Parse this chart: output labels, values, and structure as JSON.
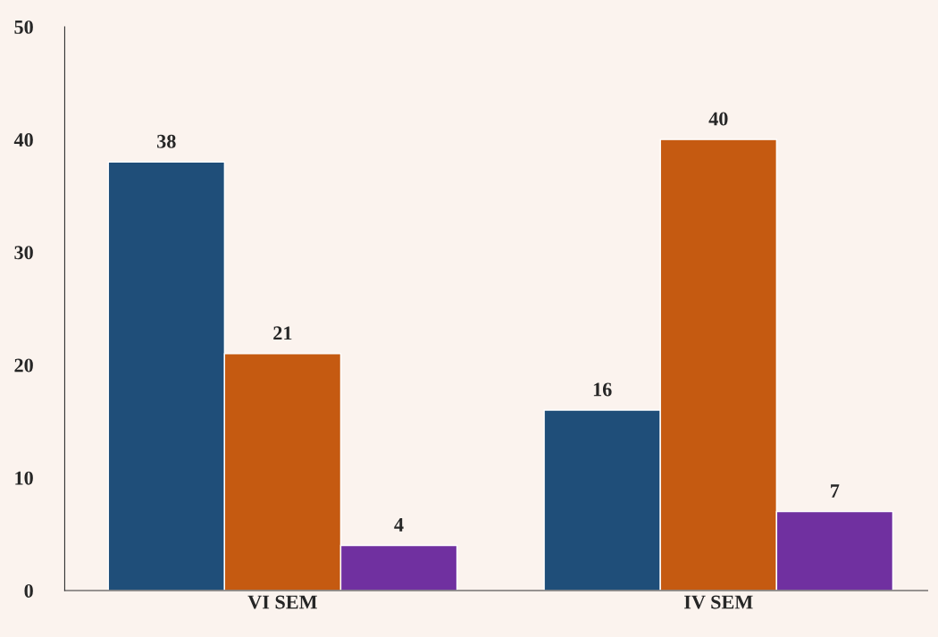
{
  "chart_data": {
    "type": "bar",
    "categories": [
      "VI SEM",
      "IV SEM"
    ],
    "series": [
      {
        "color": "#1f4e79",
        "values": [
          38,
          16
        ]
      },
      {
        "color": "#c55a11",
        "values": [
          21,
          40
        ]
      },
      {
        "color": "#7030a0",
        "values": [
          4,
          7
        ]
      }
    ],
    "ylim": [
      0,
      50
    ],
    "yticks": [
      0,
      10,
      20,
      30,
      40,
      50
    ],
    "data_labels": true
  }
}
